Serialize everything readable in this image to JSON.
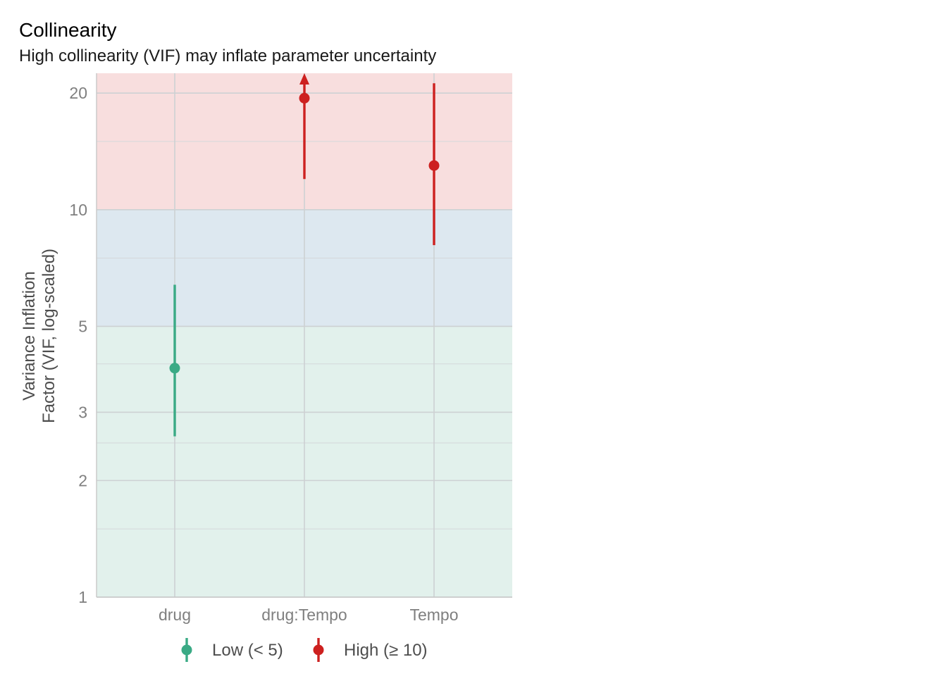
{
  "chart_data": {
    "type": "scatter",
    "title": "Collinearity",
    "subtitle": "High collinearity (VIF) may inflate parameter uncertainty",
    "xlabel": "",
    "ylabel_lines": [
      "Variance Inflation",
      "Factor (VIF, log-scaled)"
    ],
    "y_scale": "log",
    "ylim": [
      1,
      22.5
    ],
    "y_ticks": [
      1,
      2,
      3,
      5,
      10,
      20
    ],
    "y_minor_gridlines": [
      1.5,
      2.5,
      4,
      7.5,
      15
    ],
    "grid": true,
    "categories": [
      "drug",
      "drug:Tempo",
      "Tempo"
    ],
    "points": [
      {
        "category": "drug",
        "vif": 3.9,
        "ci_low": 2.6,
        "ci_high": 6.4,
        "group": "low"
      },
      {
        "category": "drug:Tempo",
        "vif": 19.4,
        "ci_low": 12.0,
        "ci_high": 22.5,
        "ci_truncated": true,
        "group": "high"
      },
      {
        "category": "Tempo",
        "vif": 13.0,
        "ci_low": 8.1,
        "ci_high": 21.2,
        "group": "high"
      }
    ],
    "bands": [
      {
        "from": 1,
        "to": 5,
        "color": "#e2f1ec"
      },
      {
        "from": 5,
        "to": 10,
        "color": "#dde8f0"
      },
      {
        "from": 10,
        "to": 22.5,
        "color": "#f8dede"
      }
    ],
    "groups": {
      "low": {
        "label": "Low (< 5)",
        "color": "#3aaa85"
      },
      "high": {
        "label": "High (≥ 10)",
        "color": "#cd201f"
      }
    },
    "legend": {
      "position": "bottom",
      "order": [
        "low",
        "high"
      ]
    }
  }
}
